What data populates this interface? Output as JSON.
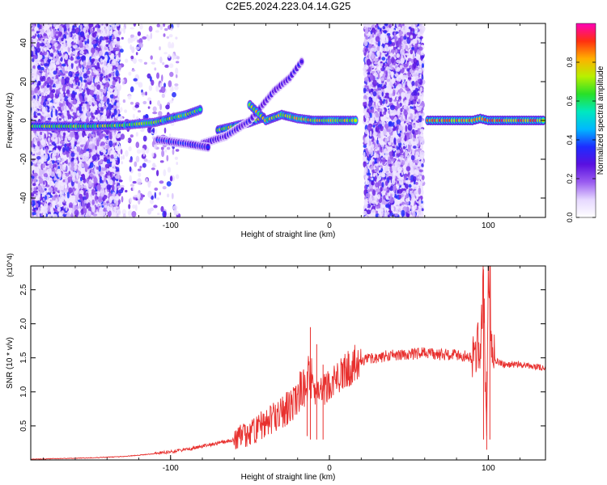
{
  "title": "C2E5.2024.223.04.14.G25",
  "colors": {
    "snr_line": "#e8302e",
    "spectrogram_background": "#ffffff",
    "colorbar": [
      "#ffffff",
      "#e6d8ff",
      "#9a5cf0",
      "#5a10e0",
      "#1e2cff",
      "#00b8ff",
      "#00e8c0",
      "#28e028",
      "#b8f000",
      "#ffb000",
      "#ff3010",
      "#ff00b8"
    ]
  },
  "chart_data": [
    {
      "type": "heatmap",
      "title": "C2E5.2024.223.04.14.G25",
      "xlabel": "Height of straight line (km)",
      "ylabel": "Frequency (Hz)",
      "xlim": [
        -188,
        136
      ],
      "ylim": [
        -50,
        50
      ],
      "xticks": [
        "-100",
        "0",
        "100"
      ],
      "xtick_values": [
        -100,
        0,
        100
      ],
      "yticks": [
        "-40",
        "-20",
        "0",
        "20",
        "40"
      ],
      "ytick_values": [
        -40,
        -20,
        0,
        20,
        40
      ],
      "colorbar": {
        "label": "Normalized spectral amplitude",
        "range": [
          0,
          1
        ],
        "ticks": [
          "0.0",
          "0.2",
          "0.4",
          "0.6",
          "0.8"
        ],
        "tick_values": [
          0,
          0.2,
          0.4,
          0.6,
          0.8
        ]
      },
      "noise_regions": [
        {
          "x": [
            -188,
            -132
          ],
          "y": [
            -50,
            50
          ],
          "density": 1.0
        },
        {
          "x": [
            -132,
            -95
          ],
          "y": [
            -50,
            50
          ],
          "density": 0.12
        },
        {
          "x": [
            22,
            59
          ],
          "y": [
            -50,
            50
          ],
          "density": 1.0
        }
      ],
      "ridges": [
        {
          "name": "main",
          "points": [
            [
              -188,
              -3
            ],
            [
              -150,
              -3
            ],
            [
              -130,
              -2.5
            ],
            [
              -110,
              -1
            ],
            [
              -100,
              1
            ],
            [
              -90,
              3
            ],
            [
              -80,
              6
            ]
          ],
          "peak": 0.75
        },
        {
          "name": "branch",
          "points": [
            [
              -70,
              -5
            ],
            [
              -60,
              -3
            ],
            [
              -50,
              -1
            ],
            [
              -40,
              2
            ]
          ],
          "peak": 0.8
        },
        {
          "name": "upper-branch",
          "points": [
            [
              -80,
              -12
            ],
            [
              -65,
              -8
            ],
            [
              -50,
              0
            ],
            [
              -42,
              8
            ],
            [
              -35,
              15
            ],
            [
              -25,
              22
            ],
            [
              -16,
              32
            ]
          ],
          "peak": 0.35
        },
        {
          "name": "lower-branch",
          "points": [
            [
              -108,
              -10
            ],
            [
              -90,
              -12
            ],
            [
              -75,
              -14
            ]
          ],
          "peak": 0.4
        },
        {
          "name": "descending",
          "points": [
            [
              -50,
              8
            ],
            [
              -40,
              0
            ],
            [
              -30,
              3
            ],
            [
              -20,
              1
            ],
            [
              -10,
              0
            ],
            [
              0,
              0
            ],
            [
              10,
              0
            ],
            [
              18,
              0
            ]
          ],
          "peak": 0.85
        },
        {
          "name": "clean-carrier",
          "points": [
            [
              62,
              0
            ],
            [
              90,
              0
            ],
            [
              95,
              1
            ],
            [
              100,
              0
            ],
            [
              136,
              0
            ]
          ],
          "peak": 0.95
        }
      ]
    },
    {
      "type": "line",
      "xlabel": "Height of straight line (km)",
      "ylabel": "SNR (10 * v/v)",
      "y_multiplier_label": "(x10^4)",
      "xlim": [
        -188,
        136
      ],
      "ylim": [
        0,
        2.85
      ],
      "xticks": [
        "-100",
        "0",
        "100"
      ],
      "xtick_values": [
        -100,
        0,
        100
      ],
      "yticks": [
        "0.5",
        "1.0",
        "1.5",
        "2.0",
        "2.5"
      ],
      "ytick_values": [
        0.5,
        1.0,
        1.5,
        2.0,
        2.5
      ],
      "series": [
        {
          "x": [
            -188,
            -170,
            -150,
            -130,
            -115,
            -100,
            -90,
            -80,
            -70,
            -60,
            -50,
            -40,
            -30,
            -25,
            -20,
            -15,
            -12,
            -10,
            -5,
            0,
            5,
            10,
            15,
            20,
            25,
            30,
            40,
            50,
            60,
            70,
            80,
            90,
            95,
            97,
            98,
            99,
            100,
            101,
            102,
            105,
            110,
            120,
            130,
            136
          ],
          "y": [
            0.01,
            0.02,
            0.03,
            0.05,
            0.08,
            0.12,
            0.15,
            0.2,
            0.25,
            0.3,
            0.4,
            0.55,
            0.7,
            0.8,
            0.95,
            1.1,
            1.3,
            0.9,
            1.0,
            1.1,
            1.2,
            1.3,
            1.4,
            1.45,
            1.48,
            1.5,
            1.55,
            1.55,
            1.57,
            1.55,
            1.55,
            1.5,
            1.7,
            2.7,
            1.2,
            0.4,
            2.7,
            2.85,
            1.6,
            1.45,
            1.4,
            1.4,
            1.37,
            1.35
          ]
        }
      ],
      "spikes": [
        [
          -12,
          1.95
        ],
        [
          -14,
          0.35
        ],
        [
          -8,
          1.7
        ],
        [
          -4,
          1.4
        ],
        [
          97,
          2.8
        ],
        [
          99,
          0.15
        ],
        [
          101,
          2.85
        ]
      ]
    }
  ]
}
